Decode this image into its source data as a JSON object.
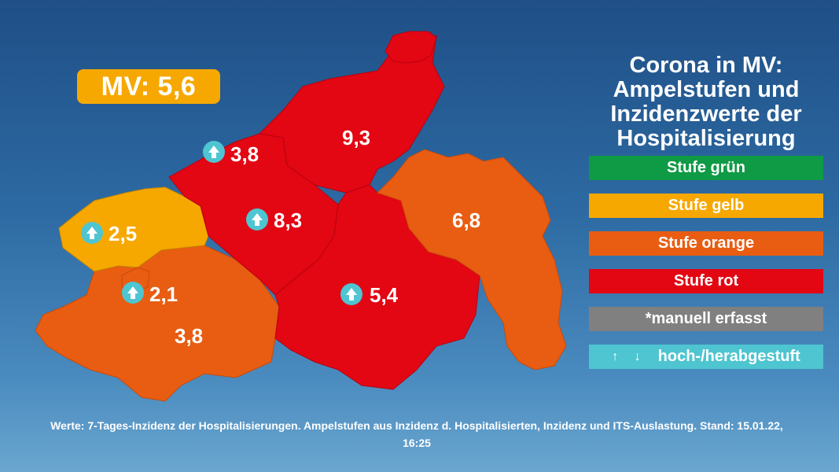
{
  "header": {
    "mv_label": "MV: 5,6"
  },
  "title_lines": [
    "Corona in MV:",
    "Ampelstufen und",
    "Inzidenzwerte der",
    "Hospitalisierung"
  ],
  "legend": [
    {
      "label": "Stufe grün",
      "color": "#0f9a45"
    },
    {
      "label": "Stufe gelb",
      "color": "#f6a800"
    },
    {
      "label": "Stufe orange",
      "color": "#e85d12"
    },
    {
      "label": "Stufe rot",
      "color": "#e30613"
    },
    {
      "label": "*manuell erfasst",
      "color": "#808080"
    },
    {
      "label": "hoch-/herabgestuft",
      "arrows": "↑ ↓",
      "color": "#4ec5d0"
    }
  ],
  "districts": [
    {
      "name": "vorpommern-ruegen",
      "value": "9,3",
      "level": "rot",
      "color": "#e30613"
    },
    {
      "name": "rostock",
      "value": "3,8",
      "level": "rot",
      "color": "#e30613",
      "upgraded": true
    },
    {
      "name": "nordwestmecklenburg",
      "value": "2,5",
      "level": "gelb",
      "color": "#f6a800",
      "upgraded": true
    },
    {
      "name": "schwerin",
      "value": "2,1",
      "level": "orange",
      "color": "#e85d12",
      "upgraded": true
    },
    {
      "name": "ludwigslust-parchim",
      "value": "3,8",
      "level": "orange",
      "color": "#e85d12"
    },
    {
      "name": "guestrow-area",
      "value": "8,3",
      "level": "rot",
      "color": "#e30613",
      "upgraded": true
    },
    {
      "name": "mecklenburgische-seenplatte",
      "value": "5,4",
      "level": "rot",
      "color": "#e30613",
      "upgraded": true
    },
    {
      "name": "vorpommern-greifswald",
      "value": "6,8",
      "level": "orange",
      "color": "#e85d12"
    }
  ],
  "footnote": {
    "line1": "Werte: 7-Tages-Inzidenz der Hospitalisierungen. Ampelstufen aus Inzidenz d. Hospitalisierten, Inzidenz und ITS-Auslastung. Stand: 15.01.22,",
    "line2": "16:25"
  }
}
